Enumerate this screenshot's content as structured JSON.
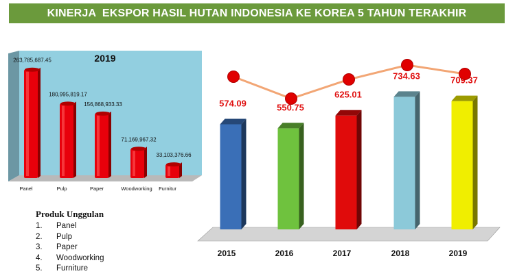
{
  "title": "KINERJA  EKSPOR HASIL HUTAN INDONESIA KE KOREA 5 TAHUN TERAKHIR",
  "product_list": {
    "title": "Produk Unggulan",
    "items": [
      {
        "num": "1.",
        "label": "Panel"
      },
      {
        "num": "2.",
        "label": "Pulp"
      },
      {
        "num": "3.",
        "label": "Paper"
      },
      {
        "num": "4.",
        "label": "Woodworking"
      },
      {
        "num": "5.",
        "label": "Furniture"
      }
    ]
  },
  "colors": {
    "title_bg": "#6b9a3c",
    "left_panel_bg": "#92cfe0",
    "left_bar": "#e8000b",
    "line": "#f2a675",
    "marker": "#e00000",
    "value_label": "#e01010"
  },
  "chart_data": [
    {
      "type": "bar",
      "title": "2019",
      "categories": [
        "Panel",
        "Pulp",
        "Paper",
        "Woodworking",
        "Furnitur"
      ],
      "values": [
        263785687.45,
        180995819.17,
        156868933.33,
        71169967.32,
        33103376.66
      ],
      "value_labels": [
        "263,785,687.45",
        "180,995,819.17",
        "156,868,933.33",
        "71,169,967.32",
        "33,103,376.66"
      ],
      "grid": false
    },
    {
      "type": "bar",
      "categories": [
        "2015",
        "2016",
        "2017",
        "2018",
        "2019"
      ],
      "values": [
        574.09,
        550.75,
        625.01,
        734.63,
        709.37
      ],
      "value_labels": [
        "574.09",
        "550.75",
        "625.01",
        "734.63",
        "709.37"
      ],
      "bar_colors": [
        "#3a6fb7",
        "#6fc23e",
        "#e00b0b",
        "#8cc9d9",
        "#f0ee00"
      ],
      "overlay_line": {
        "type": "line",
        "values": [
          574.09,
          550.75,
          625.01,
          734.63,
          709.37
        ]
      },
      "grid": false
    }
  ]
}
